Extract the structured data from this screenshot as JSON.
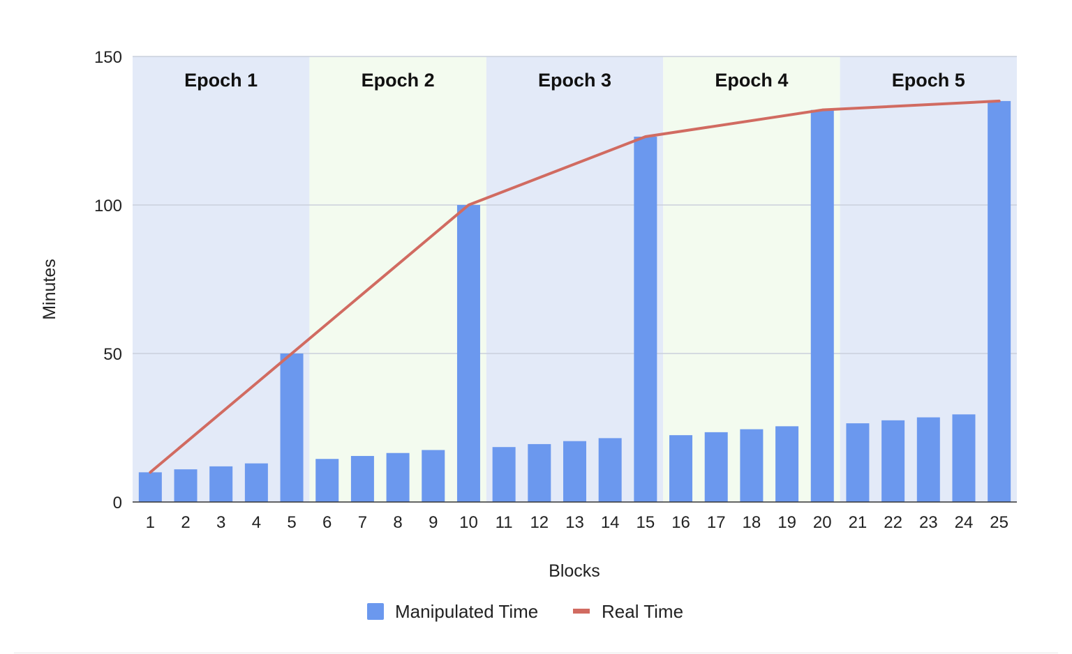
{
  "chart_data": {
    "type": "bar",
    "xlabel": "Blocks",
    "ylabel": "Minutes",
    "ylim": [
      0,
      150
    ],
    "yticks": [
      0,
      50,
      100,
      150
    ],
    "grid": true,
    "legend_position": "bottom",
    "categories": [
      "1",
      "2",
      "3",
      "4",
      "5",
      "6",
      "7",
      "8",
      "9",
      "10",
      "11",
      "12",
      "13",
      "14",
      "15",
      "16",
      "17",
      "18",
      "19",
      "20",
      "21",
      "22",
      "23",
      "24",
      "25"
    ],
    "series": [
      {
        "name": "Manipulated Time",
        "type": "bar",
        "color": "#6b98ee",
        "values": [
          10,
          11,
          12,
          13,
          50,
          14.5,
          15.5,
          16.5,
          17.5,
          100,
          18.5,
          19.5,
          20.5,
          21.5,
          123,
          22.5,
          23.5,
          24.5,
          25.5,
          132,
          26.5,
          27.5,
          28.5,
          29.5,
          135
        ]
      },
      {
        "name": "Real Time",
        "type": "line",
        "color": "#d16b61",
        "points": [
          [
            1,
            10
          ],
          [
            5,
            50
          ],
          [
            10,
            100
          ],
          [
            15,
            123
          ],
          [
            20,
            132
          ],
          [
            25,
            135
          ]
        ]
      }
    ],
    "bands": [
      {
        "label": "Epoch 1",
        "from": 1,
        "to": 5,
        "color": "#e3eaf8"
      },
      {
        "label": "Epoch 2",
        "from": 6,
        "to": 10,
        "color": "#f3fbef"
      },
      {
        "label": "Epoch 3",
        "from": 11,
        "to": 15,
        "color": "#e3eaf8"
      },
      {
        "label": "Epoch 4",
        "from": 16,
        "to": 20,
        "color": "#f3fbef"
      },
      {
        "label": "Epoch 5",
        "from": 21,
        "to": 25,
        "color": "#e3eaf8"
      }
    ]
  }
}
